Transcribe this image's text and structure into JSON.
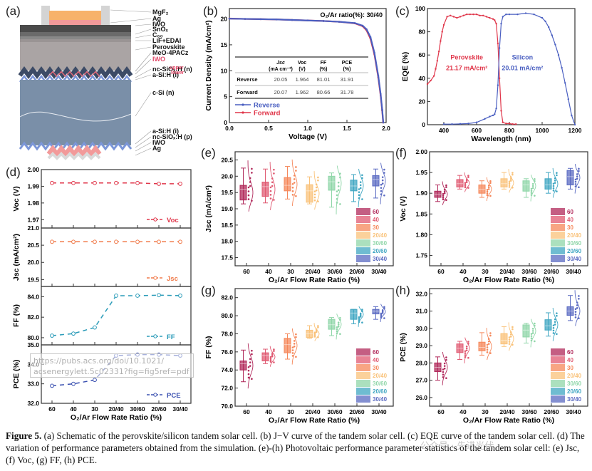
{
  "panels": {
    "a": {
      "label": "(a)",
      "layers": [
        "MgF₂",
        "Ag",
        "IWO",
        "SnOₓ",
        "C₆₀",
        "LiF+EDAI",
        "Perovskite",
        "MeO-4PACz",
        "IWO",
        "nc-SiOₓ:H (n)",
        "a-Si:H (i)",
        "c-Si (n)",
        "a-Si:H (i)",
        "nc-SiOₓ:H (p)",
        "IWO",
        "Ag"
      ],
      "iwo_upper": "upper",
      "iwo_lower": "lower",
      "colors": {
        "mgf2": "#f7b26a",
        "ag_top": "#f29a9a",
        "iwo": "#3a3a3a",
        "perovskite": "#a9a3a3",
        "csi": "#7a8fa8",
        "iwo_highlight": "#e24a6a"
      }
    },
    "b": {
      "label": "(b)"
    },
    "c": {
      "label": "(c)"
    },
    "d": {
      "label": "(d)"
    },
    "e": {
      "label": "(e)"
    },
    "f": {
      "label": "(f)"
    },
    "g": {
      "label": "(g)"
    },
    "h": {
      "label": "(h)"
    }
  },
  "overlay": {
    "url_line1": "https://pubs.acs.org/doi/10.1021/",
    "url_line2": "acsenergylett.5c02331?fig=fig5ref=pdf",
    "watermark": "公众号 · 先进光伏"
  },
  "caption": {
    "fig": "Figure 5.",
    "text": " (a) Schematic of the perovskite/silicon tandem solar cell. (b) J−V curve of the tandem solar cell. (c) EQE curve of the tandem solar cell. (d) The variation of performance parameters obtained from the simulation. (e)-(h) Photovoltaic performance parameter statistics of the tandem solar cell: (e) Jsc, (f) Voc, (g) FF, (h) PCE."
  },
  "chart_data": [
    {
      "id": "b",
      "type": "line",
      "title": "O₂/Ar ratio(%): 30/40",
      "xlabel": "Voltage (V)",
      "ylabel": "Current Density (mA/cm²)",
      "xlim": [
        0,
        2.0
      ],
      "ylim": [
        0,
        22
      ],
      "xticks": [
        "0.0",
        "0.5",
        "1.0",
        "1.5",
        "2.0"
      ],
      "yticks": [
        "0",
        "5",
        "10",
        "15",
        "20"
      ],
      "legend": [
        "Reverse",
        "Forward"
      ],
      "legend_position": "bottom-left",
      "series": [
        {
          "name": "Reverse",
          "color": "#4a5fc1",
          "x": [
            0,
            0.2,
            0.4,
            0.6,
            0.8,
            1.0,
            1.2,
            1.4,
            1.6,
            1.7,
            1.75,
            1.8,
            1.85,
            1.9,
            1.93,
            1.95,
            1.964
          ],
          "y": [
            20.05,
            20.0,
            19.95,
            19.9,
            19.8,
            19.7,
            19.6,
            19.45,
            19.2,
            18.7,
            18.0,
            16.5,
            13.5,
            9.0,
            5.5,
            2.5,
            0
          ]
        },
        {
          "name": "Forward",
          "color": "#e0364a",
          "x": [
            0,
            0.2,
            0.4,
            0.6,
            0.8,
            1.0,
            1.2,
            1.4,
            1.6,
            1.7,
            1.75,
            1.8,
            1.85,
            1.9,
            1.93,
            1.95,
            1.962
          ],
          "y": [
            20.07,
            20.0,
            19.95,
            19.9,
            19.8,
            19.7,
            19.6,
            19.45,
            19.15,
            18.6,
            17.8,
            16.2,
            13.2,
            8.7,
            5.2,
            2.3,
            0
          ]
        }
      ],
      "table": {
        "headers": [
          "",
          "Jsc (mA cm⁻²)",
          "Voc (V)",
          "FF (%)",
          "PCE (%)"
        ],
        "header_main": [
          "",
          "Jsc",
          "Voc",
          "FF",
          "PCE"
        ],
        "header_unit": [
          "",
          "(mA cm⁻²)",
          "(V)",
          "(%)",
          "(%)"
        ],
        "rows": [
          [
            "Reverse",
            "20.05",
            "1.964",
            "81.01",
            "31.91"
          ],
          [
            "Forward",
            "20.07",
            "1.962",
            "80.66",
            "31.78"
          ]
        ]
      }
    },
    {
      "id": "c",
      "type": "line",
      "xlabel": "Wavelength (nm)",
      "ylabel": "EQE (%)",
      "xlim": [
        300,
        1200
      ],
      "ylim": [
        0,
        100
      ],
      "xticks": [
        "400",
        "600",
        "800",
        "1000",
        "1200"
      ],
      "yticks": [
        "0",
        "20",
        "40",
        "60",
        "80",
        "100"
      ],
      "annotations": [
        {
          "text1": "Perovskite",
          "text2": "21.17 mA/cm²",
          "color": "#e0364a"
        },
        {
          "text1": "Silicon",
          "text2": "20.01 mA/cm²",
          "color": "#4a5fc1"
        }
      ],
      "series": [
        {
          "name": "Perovskite",
          "color": "#e0364a",
          "x": [
            300,
            320,
            340,
            350,
            360,
            370,
            380,
            390,
            400,
            420,
            440,
            460,
            480,
            500,
            520,
            540,
            560,
            580,
            600,
            620,
            640,
            660,
            680,
            700,
            710,
            720,
            730,
            740,
            750,
            760,
            780,
            800,
            820,
            840
          ],
          "y": [
            35,
            38,
            42,
            48,
            55,
            63,
            72,
            80,
            86,
            93,
            94,
            93,
            92,
            93,
            94,
            95,
            95,
            95,
            95,
            94,
            94,
            93,
            92,
            91,
            90,
            87,
            70,
            40,
            12,
            2,
            1,
            1,
            0.5,
            0.5
          ]
        },
        {
          "name": "Silicon",
          "color": "#4a5fc1",
          "x": [
            400,
            450,
            500,
            550,
            600,
            650,
            680,
            700,
            710,
            720,
            730,
            740,
            750,
            760,
            780,
            800,
            850,
            900,
            950,
            1000,
            1020,
            1040,
            1060,
            1080,
            1100,
            1120,
            1140,
            1160,
            1180,
            1200
          ],
          "y": [
            0.5,
            0.5,
            0.7,
            1,
            2,
            5,
            7,
            8,
            9,
            14,
            34,
            66,
            87,
            93,
            95,
            95,
            95,
            96,
            95,
            92,
            89,
            84,
            77,
            69,
            60,
            49,
            36,
            22,
            8,
            0
          ]
        }
      ]
    },
    {
      "id": "d",
      "type": "line",
      "xlabel": "O₂/Ar Flow Rate Ratio (%)",
      "categories": [
        "60",
        "40",
        "30",
        "20/40",
        "30/60",
        "20/60",
        "30/40"
      ],
      "subplots": [
        {
          "name": "Voc",
          "ylabel": "Voc (V)",
          "legend": "Voc",
          "color": "#e0364a",
          "ylim": [
            1.965,
            2.0
          ],
          "yticks": [
            "1.97",
            "1.98",
            "1.99",
            "2.00"
          ],
          "values": [
            1.992,
            1.992,
            1.992,
            1.992,
            1.992,
            1.9915,
            1.9915
          ]
        },
        {
          "name": "Jsc",
          "ylabel": "Jsc (mA/cm²)",
          "legend": "Jsc",
          "color": "#f07a4a",
          "ylim": [
            19.3,
            21.0
          ],
          "yticks": [
            "19.5",
            "20.0",
            "20.5",
            "21.0"
          ],
          "values": [
            20.6,
            20.6,
            20.6,
            20.6,
            20.6,
            20.6,
            20.6
          ]
        },
        {
          "name": "FF",
          "ylabel": "FF (%)",
          "legend": "FF",
          "color": "#2a9bb8",
          "ylim": [
            79.3,
            85.0
          ],
          "yticks": [
            "80.0",
            "82.0",
            "84.0"
          ],
          "values": [
            80.2,
            80.4,
            81.0,
            84.1,
            84.1,
            84.15,
            84.1
          ]
        },
        {
          "name": "PCE",
          "ylabel": "PCE (%)",
          "legend": "PCE",
          "color": "#3a50b0",
          "ylim": [
            32.0,
            35.0
          ],
          "yticks": [
            "32.0",
            "33.0",
            "34.0",
            "35.0"
          ],
          "values": [
            32.9,
            33.0,
            33.2,
            34.45,
            34.5,
            34.5,
            34.45
          ]
        }
      ]
    },
    {
      "id": "e",
      "type": "box",
      "xlabel": "O₂/Ar Flow Rate Ratio (%)",
      "ylabel": "Jsc (mA/cm²)",
      "ylim": [
        17.25,
        20.75
      ],
      "yticks": [
        "17.5",
        "18.0",
        "18.5",
        "19.0",
        "19.5",
        "20.0",
        "20.5"
      ],
      "categories": [
        "60",
        "40",
        "30",
        "20/40",
        "30/60",
        "20/60",
        "30/40"
      ],
      "legend_position": "bottom-right",
      "boxes": [
        {
          "min": 19.15,
          "q1": 19.27,
          "median": 19.6,
          "q3": 19.72,
          "max": 20.25
        },
        {
          "min": 19.18,
          "q1": 19.38,
          "median": 19.68,
          "q3": 19.82,
          "max": 20.22
        },
        {
          "min": 19.3,
          "q1": 19.55,
          "median": 19.72,
          "q3": 19.96,
          "max": 20.3
        },
        {
          "min": 19.15,
          "q1": 19.2,
          "median": 19.55,
          "q3": 19.74,
          "max": 19.98
        },
        {
          "min": 19.05,
          "q1": 19.57,
          "median": 19.83,
          "q3": 20.0,
          "max": 20.1
        },
        {
          "min": 19.22,
          "q1": 19.55,
          "median": 19.7,
          "q3": 19.88,
          "max": 20.05
        },
        {
          "min": 19.33,
          "q1": 19.7,
          "median": 19.9,
          "q3": 20.02,
          "max": 20.22
        }
      ]
    },
    {
      "id": "f",
      "type": "box",
      "xlabel": "O₂/Ar Flow Rate Ratio (%)",
      "ylabel": "Voc (V)",
      "ylim": [
        1.725,
        2.0
      ],
      "yticks": [
        "1.75",
        "1.80",
        "1.85",
        "1.90",
        "1.95",
        "2.00"
      ],
      "categories": [
        "60",
        "40",
        "30",
        "20/40",
        "30/60",
        "20/60",
        "30/40"
      ],
      "legend_position": "bottom-right",
      "boxes": [
        {
          "min": 1.88,
          "q1": 1.89,
          "median": 1.898,
          "q3": 1.905,
          "max": 1.92
        },
        {
          "min": 1.91,
          "q1": 1.915,
          "median": 1.923,
          "q3": 1.933,
          "max": 1.943
        },
        {
          "min": 1.89,
          "q1": 1.9,
          "median": 1.91,
          "q3": 1.92,
          "max": 1.93
        },
        {
          "min": 1.91,
          "q1": 1.915,
          "median": 1.923,
          "q3": 1.935,
          "max": 1.95
        },
        {
          "min": 1.89,
          "q1": 1.905,
          "median": 1.92,
          "q3": 1.93,
          "max": 1.935
        },
        {
          "min": 1.9,
          "q1": 1.91,
          "median": 1.92,
          "q3": 1.935,
          "max": 1.95
        },
        {
          "min": 1.91,
          "q1": 1.92,
          "median": 1.94,
          "q3": 1.955,
          "max": 1.96
        }
      ]
    },
    {
      "id": "g",
      "type": "box",
      "xlabel": "O₂/Ar Flow Rate Ratio (%)",
      "ylabel": "FF (%)",
      "ylim": [
        70.0,
        83.0
      ],
      "yticks": [
        "70.0",
        "72.0",
        "74.0",
        "76.0",
        "78.0",
        "80.0",
        "82.0"
      ],
      "categories": [
        "60",
        "40",
        "30",
        "20/40",
        "30/60",
        "20/60",
        "30/40"
      ],
      "legend_position": "bottom-right",
      "boxes": [
        {
          "min": 72.7,
          "q1": 74.0,
          "median": 74.7,
          "q3": 75.0,
          "max": 76.2
        },
        {
          "min": 74.7,
          "q1": 75.0,
          "median": 75.6,
          "q3": 75.9,
          "max": 76.3
        },
        {
          "min": 75.2,
          "q1": 75.9,
          "median": 76.8,
          "q3": 77.5,
          "max": 78.0
        },
        {
          "min": 77.5,
          "q1": 77.6,
          "median": 78.0,
          "q3": 78.4,
          "max": 78.9
        },
        {
          "min": 77.8,
          "q1": 78.5,
          "median": 79.0,
          "q3": 79.6,
          "max": 79.8
        },
        {
          "min": 79.1,
          "q1": 79.6,
          "median": 80.3,
          "q3": 80.7,
          "max": 80.7
        },
        {
          "min": 79.6,
          "q1": 80.2,
          "median": 80.5,
          "q3": 80.7,
          "max": 81.0
        }
      ]
    },
    {
      "id": "h",
      "type": "box",
      "xlabel": "O₂/Ar Flow Rate Ratio (%)",
      "ylabel": "PCE (%)",
      "ylim": [
        25.5,
        32.3
      ],
      "yticks": [
        "26.0",
        "27.0",
        "28.0",
        "29.0",
        "30.0",
        "31.0",
        "32.0"
      ],
      "categories": [
        "60",
        "40",
        "30",
        "20/40",
        "30/60",
        "20/60",
        "30/40"
      ],
      "legend_position": "bottom-right",
      "boxes": [
        {
          "min": 27.0,
          "q1": 27.5,
          "median": 27.75,
          "q3": 28.0,
          "max": 28.35
        },
        {
          "min": 28.2,
          "q1": 28.6,
          "median": 28.85,
          "q3": 29.1,
          "max": 29.25
        },
        {
          "min": 28.45,
          "q1": 28.7,
          "median": 28.9,
          "q3": 29.2,
          "max": 29.75
        },
        {
          "min": 28.95,
          "q1": 29.1,
          "median": 29.3,
          "q3": 29.7,
          "max": 30.1
        },
        {
          "min": 29.15,
          "q1": 29.5,
          "median": 29.9,
          "q3": 30.2,
          "max": 30.3
        },
        {
          "min": 29.55,
          "q1": 29.9,
          "median": 30.15,
          "q3": 30.5,
          "max": 30.9
        },
        {
          "min": 30.45,
          "q1": 30.75,
          "median": 31.0,
          "q3": 31.25,
          "max": 31.9
        }
      ]
    }
  ],
  "series_colors": [
    "#b0285a",
    "#e05a72",
    "#f5875a",
    "#f9c27a",
    "#8fd6a8",
    "#3fa6c2",
    "#5a6ac2"
  ],
  "legend_labels": [
    "60",
    "40",
    "30",
    "20/40",
    "30/60",
    "20/60",
    "30/40"
  ]
}
